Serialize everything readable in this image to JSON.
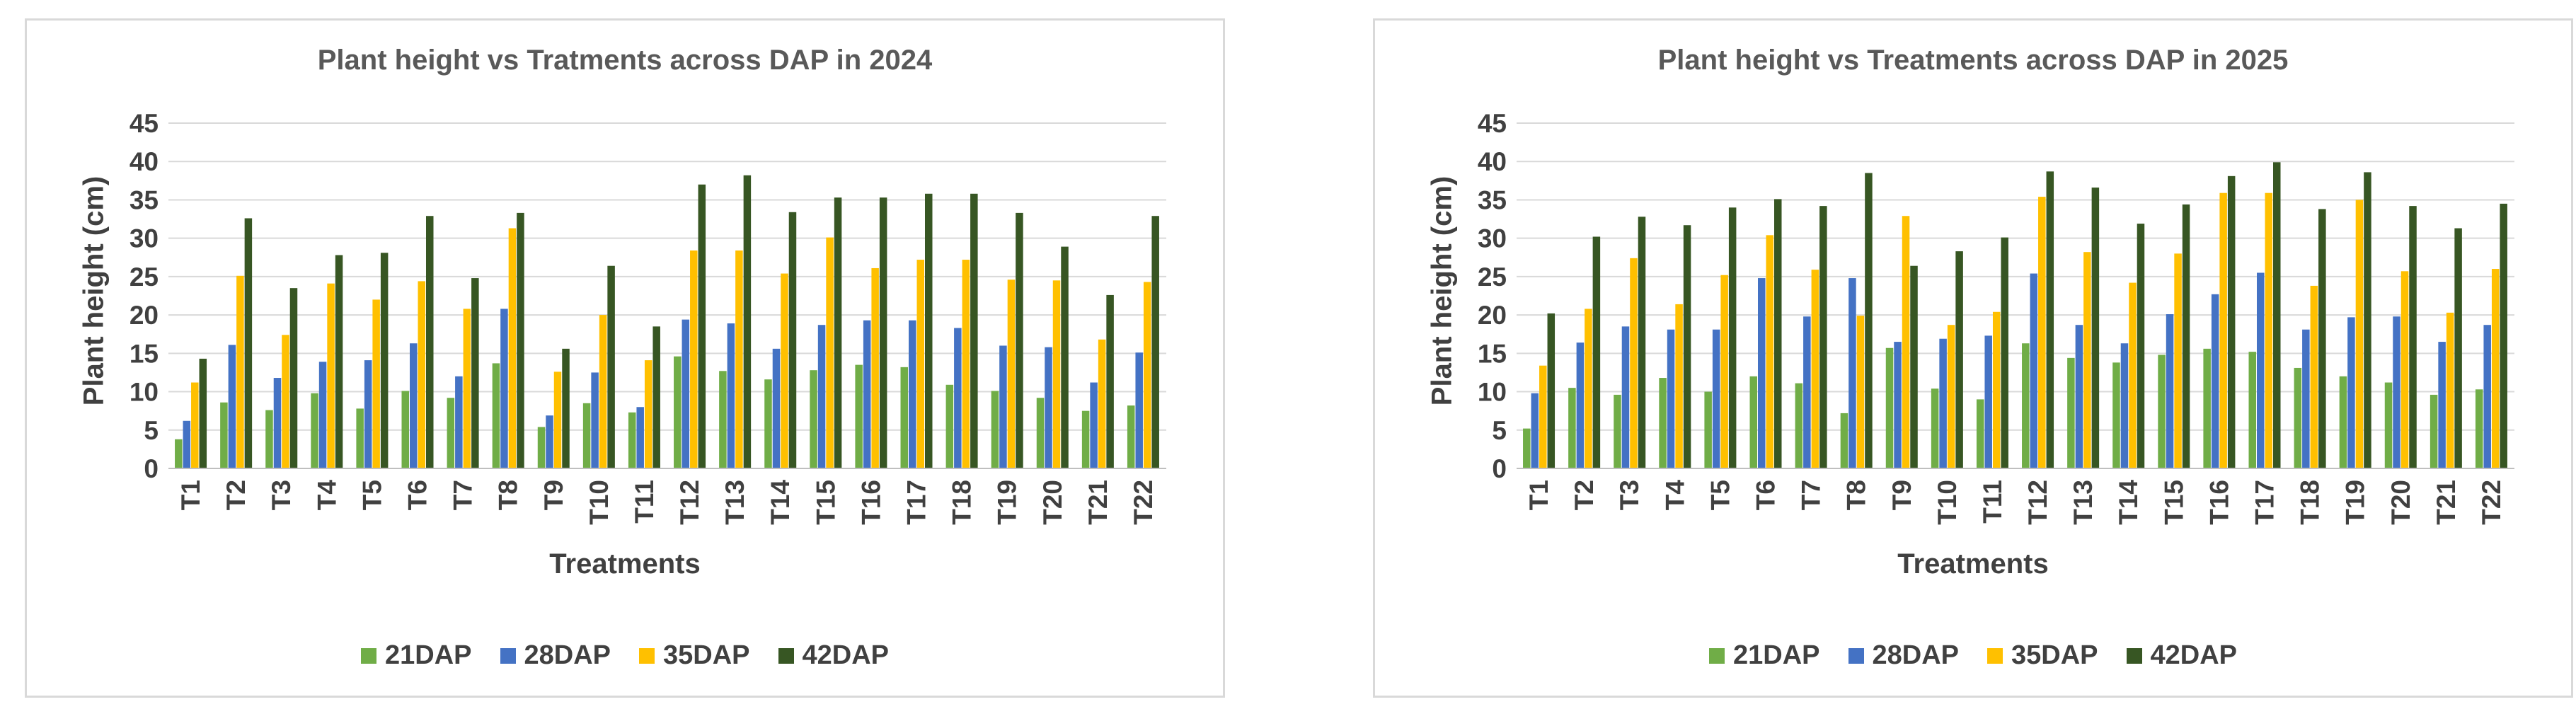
{
  "series_names": [
    "21DAP",
    "28DAP",
    "35DAP",
    "42DAP"
  ],
  "colors": [
    "#70ad47",
    "#4472c4",
    "#ffc000",
    "#375623"
  ],
  "chart_data": [
    {
      "type": "bar",
      "title": "Plant height  vs Tratments across DAP in 2024",
      "xlabel": "Treatments",
      "ylabel": "Plant height (cm)",
      "ylim": [
        0,
        45
      ],
      "yticks": [
        "0",
        "5",
        "10",
        "15",
        "20",
        "25",
        "30",
        "35",
        "40",
        "45"
      ],
      "grid": true,
      "legend": "bottom",
      "categories": [
        "T1",
        "T2",
        "T3",
        "T4",
        "T5",
        "T6",
        "T7",
        "T8",
        "T9",
        "T10",
        "T11",
        "T12",
        "T13",
        "T14",
        "T15",
        "T16",
        "T17",
        "T18",
        "T19",
        "T20",
        "T21",
        "T22"
      ],
      "series": [
        {
          "name": "21DAP",
          "color": "#70ad47",
          "values": [
            3.8,
            8.6,
            7.6,
            9.8,
            7.8,
            10.1,
            9.2,
            13.7,
            5.4,
            8.5,
            7.3,
            14.6,
            12.7,
            11.6,
            12.8,
            13.5,
            13.2,
            10.9,
            10.1,
            9.2,
            7.5,
            8.2
          ]
        },
        {
          "name": "28DAP",
          "color": "#4472c4",
          "values": [
            6.2,
            16.1,
            11.8,
            13.9,
            14.1,
            16.3,
            12.0,
            20.8,
            6.9,
            12.5,
            8.0,
            19.4,
            18.9,
            15.6,
            18.7,
            19.3,
            19.3,
            18.3,
            16.0,
            15.8,
            11.2,
            15.1
          ]
        },
        {
          "name": "35DAP",
          "color": "#ffc000",
          "values": [
            11.2,
            25.1,
            17.4,
            24.1,
            22.0,
            24.4,
            20.8,
            31.3,
            12.6,
            20.0,
            14.1,
            28.4,
            28.4,
            25.4,
            30.1,
            26.1,
            27.2,
            27.2,
            24.6,
            24.5,
            16.8,
            24.3
          ]
        },
        {
          "name": "42DAP",
          "color": "#375623",
          "values": [
            14.3,
            32.6,
            23.5,
            27.8,
            28.1,
            32.9,
            24.8,
            33.3,
            15.6,
            26.4,
            18.5,
            37.0,
            38.2,
            33.4,
            35.3,
            35.3,
            35.8,
            35.8,
            33.3,
            28.9,
            22.6,
            32.9
          ]
        }
      ]
    },
    {
      "type": "bar",
      "title": "Plant height vs Treatments across DAP in 2025",
      "xlabel": "Treatments",
      "ylabel": "Plant height (cm)",
      "ylim": [
        0,
        45
      ],
      "yticks": [
        "0",
        "5",
        "10",
        "15",
        "20",
        "25",
        "30",
        "35",
        "40",
        "45"
      ],
      "grid": true,
      "legend": "bottom",
      "categories": [
        "T1",
        "T2",
        "T3",
        "T4",
        "T5",
        "T6",
        "T7",
        "T8",
        "T9",
        "T10",
        "T11",
        "T12",
        "T13",
        "T14",
        "T15",
        "T16",
        "T17",
        "T18",
        "T19",
        "T20",
        "T21",
        "T22"
      ],
      "series": [
        {
          "name": "21DAP",
          "color": "#70ad47",
          "values": [
            5.2,
            10.5,
            9.6,
            11.8,
            10.0,
            12.0,
            11.1,
            7.2,
            15.7,
            10.4,
            9.0,
            16.3,
            14.4,
            13.8,
            14.8,
            15.6,
            15.2,
            13.1,
            12.0,
            11.2,
            9.6,
            10.3
          ]
        },
        {
          "name": "28DAP",
          "color": "#4472c4",
          "values": [
            9.8,
            16.4,
            18.5,
            18.1,
            18.1,
            24.8,
            19.8,
            24.8,
            16.5,
            16.9,
            17.3,
            25.4,
            18.7,
            16.3,
            20.1,
            22.7,
            25.5,
            18.1,
            19.7,
            19.8,
            16.5,
            18.7
          ]
        },
        {
          "name": "35DAP",
          "color": "#ffc000",
          "values": [
            13.4,
            20.8,
            27.4,
            21.4,
            25.2,
            30.4,
            25.9,
            19.9,
            32.9,
            18.7,
            20.4,
            35.4,
            28.2,
            24.2,
            28.0,
            35.9,
            35.9,
            23.8,
            35.0,
            25.7,
            20.3,
            26.0
          ]
        },
        {
          "name": "42DAP",
          "color": "#375623",
          "values": [
            20.2,
            30.2,
            32.8,
            31.7,
            34.0,
            35.1,
            34.2,
            38.5,
            26.4,
            28.3,
            30.1,
            38.7,
            36.6,
            31.9,
            34.4,
            38.1,
            39.9,
            33.8,
            38.6,
            34.2,
            31.3,
            34.5
          ]
        }
      ]
    }
  ]
}
